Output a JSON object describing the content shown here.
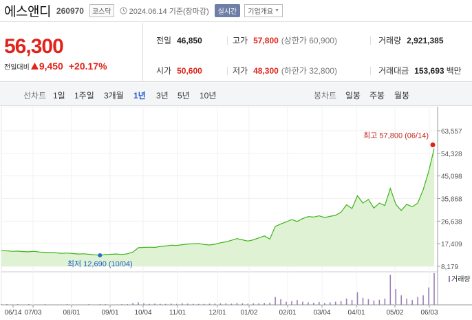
{
  "header": {
    "name": "에스앤디",
    "code": "260970",
    "market": "코스닥",
    "date": "2024.06.14",
    "date_suffix": "기준(장마감)",
    "realtime_label": "실시간",
    "company_label": "기업개요",
    "icons": {
      "clock": "clock-icon",
      "caret": "caret-down-icon"
    }
  },
  "price": {
    "current": "56,300",
    "change_label": "전일대비",
    "change_amount": "9,450",
    "change_rate": "+20.17%",
    "up_color": "#e0241b",
    "down_color": "#1f5ccc"
  },
  "stats": {
    "prev_close": {
      "label": "전일",
      "value": "46,850"
    },
    "high": {
      "label": "고가",
      "value": "57,800",
      "sub": "(상한가 60,900)"
    },
    "volume": {
      "label": "거래량",
      "value": "2,921,385"
    },
    "open": {
      "label": "시가",
      "value": "50,600"
    },
    "low": {
      "label": "저가",
      "value": "48,300",
      "sub": "(하한가 32,800)"
    },
    "trade_value": {
      "label": "거래대금",
      "value": "153,693",
      "unit": "백만"
    }
  },
  "tabs": {
    "line_label": "선차트",
    "line": [
      "1일",
      "1주일",
      "3개월",
      "1년",
      "3년",
      "5년",
      "10년"
    ],
    "active": "1년",
    "candle_label": "봉차트",
    "candle": [
      "일봉",
      "주봉",
      "월봉"
    ]
  },
  "chart_data": {
    "type": "area",
    "y_ticks": [
      "63,557",
      "54,328",
      "45,098",
      "35,868",
      "26,638",
      "17,409",
      "8,179"
    ],
    "ylim": [
      8179,
      63557
    ],
    "x_labels": [
      "06/14",
      "07/03",
      "08/01",
      "09/01",
      "10/04",
      "11/01",
      "12/01",
      "01/02",
      "02/01",
      "03/04",
      "04/01",
      "05/02",
      "06/03"
    ],
    "max_annotation": "최고 57,800 (06/14)",
    "min_annotation": "최저 12,690 (10/04)",
    "volume_label": "거래량",
    "line_color": "#3cb11a",
    "fill_color": "#dff3d4",
    "values": [
      14600,
      14500,
      14300,
      14400,
      14200,
      14100,
      14300,
      14000,
      13900,
      13800,
      13700,
      13500,
      13600,
      13400,
      13200,
      13300,
      13100,
      12900,
      12690,
      13000,
      13100,
      13200,
      13000,
      13300,
      14000,
      15800,
      15900,
      16000,
      15900,
      16300,
      16500,
      16800,
      16700,
      17000,
      17300,
      17400,
      17500,
      17100,
      16900,
      17200,
      17800,
      18200,
      18800,
      19500,
      19000,
      18500,
      19000,
      19800,
      20600,
      19300,
      24500,
      25500,
      26300,
      27300,
      26500,
      27700,
      28500,
      28300,
      28800,
      28100,
      28600,
      29000,
      30300,
      33300,
      31800,
      37000,
      34000,
      35500,
      32000,
      34000,
      33000,
      40000,
      33500,
      31000,
      33500,
      32500,
      34000,
      39500,
      46850,
      56300
    ],
    "volume": [
      0.02,
      0.02,
      0.01,
      0.02,
      0.01,
      0.02,
      0.01,
      0.01,
      0.02,
      0.01,
      0.01,
      0.01,
      0.02,
      0.01,
      0.01,
      0.01,
      0.02,
      0.01,
      0.02,
      0.02,
      0.01,
      0.01,
      0.02,
      0.02,
      0.06,
      0.08,
      0.05,
      0.03,
      0.04,
      0.03,
      0.03,
      0.04,
      0.03,
      0.05,
      0.04,
      0.03,
      0.03,
      0.03,
      0.04,
      0.04,
      0.05,
      0.05,
      0.04,
      0.06,
      0.05,
      0.04,
      0.05,
      0.05,
      0.06,
      0.07,
      0.25,
      0.18,
      0.1,
      0.12,
      0.15,
      0.1,
      0.08,
      0.07,
      0.09,
      0.06,
      0.08,
      0.1,
      0.12,
      0.2,
      0.15,
      0.4,
      0.22,
      0.18,
      0.14,
      0.16,
      0.2,
      0.95,
      0.5,
      0.3,
      0.2,
      0.15,
      0.25,
      0.3,
      0.55,
      1.0
    ]
  }
}
